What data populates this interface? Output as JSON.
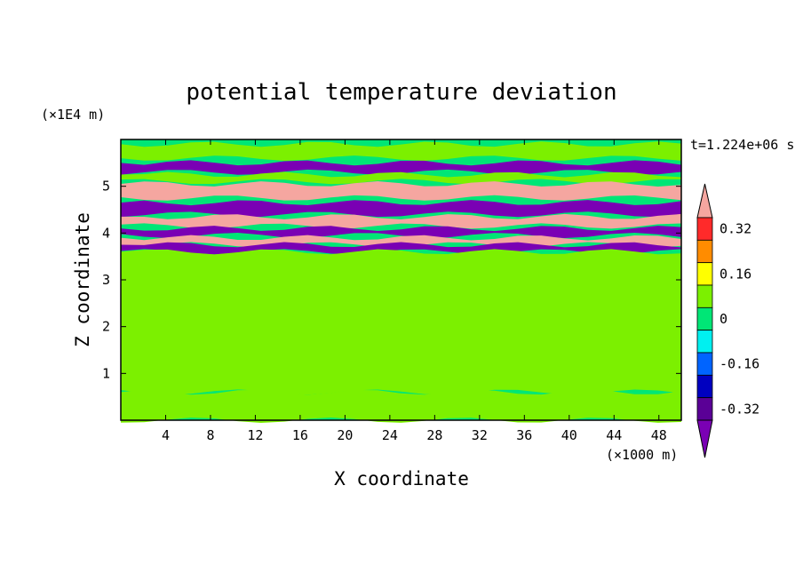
{
  "chart_data": {
    "type": "heatmap",
    "title": "potential temperature deviation",
    "xlabel": "X coordinate",
    "ylabel": "Z coordinate",
    "x_unit": "(×1000 m)",
    "y_unit": "(×1E4 m)",
    "time_label": "t=1.224e+06 s",
    "xlim": [
      0,
      50
    ],
    "ylim": [
      0,
      6
    ],
    "x_ticks": [
      "4",
      "8",
      "12",
      "16",
      "20",
      "24",
      "28",
      "32",
      "36",
      "40",
      "44",
      "48"
    ],
    "y_ticks": [
      "1",
      "2",
      "3",
      "4",
      "5"
    ],
    "colorbar": {
      "levels": [
        {
          "value": "0.32",
          "color": "#ff2a2a"
        },
        {
          "value": "",
          "color": "#ff8c00"
        },
        {
          "value": "0.16",
          "color": "#ffff00"
        },
        {
          "value": "",
          "color": "#7cf000"
        },
        {
          "value": "0",
          "color": "#00e676"
        },
        {
          "value": "",
          "color": "#00f0f0"
        },
        {
          "value": "-0.16",
          "color": "#0064ff"
        },
        {
          "value": "",
          "color": "#0000c0"
        },
        {
          "value": "-0.32",
          "color": "#5a0096"
        }
      ],
      "top_color": "#f5a6a0",
      "bottom_color": "#7a00b4",
      "tick_labels": [
        "0.32",
        "0.16",
        "0",
        "-0.16",
        "-0.32"
      ]
    },
    "bands": [
      {
        "z": [
          5.6,
          5.9
        ],
        "value": 0.08,
        "color": "#7cf000"
      },
      {
        "z": [
          5.3,
          5.5
        ],
        "value": -0.4,
        "color": "#7a00b4"
      },
      {
        "z": [
          5.1,
          5.25
        ],
        "value": 0.1,
        "color": "#7cf000"
      },
      {
        "z": [
          4.75,
          5.05
        ],
        "value": 0.4,
        "color": "#f5a6a0"
      },
      {
        "z": [
          4.4,
          4.65
        ],
        "value": -0.4,
        "color": "#7a00b4"
      },
      {
        "z": [
          4.15,
          4.35
        ],
        "value": 0.4,
        "color": "#f5a6a0"
      },
      {
        "z": [
          3.95,
          4.1
        ],
        "value": -0.4,
        "color": "#7a00b4"
      },
      {
        "z": [
          3.75,
          3.9
        ],
        "value": 0.4,
        "color": "#f5a6a0"
      },
      {
        "z": [
          3.6,
          3.75
        ],
        "value": -0.4,
        "color": "#7a00b4"
      },
      {
        "z": [
          0.6,
          3.6
        ],
        "value": 0.05,
        "color": "#7cf000"
      },
      {
        "z": [
          0.0,
          0.6
        ],
        "value": 0.1,
        "color": "#7cf000"
      }
    ]
  }
}
